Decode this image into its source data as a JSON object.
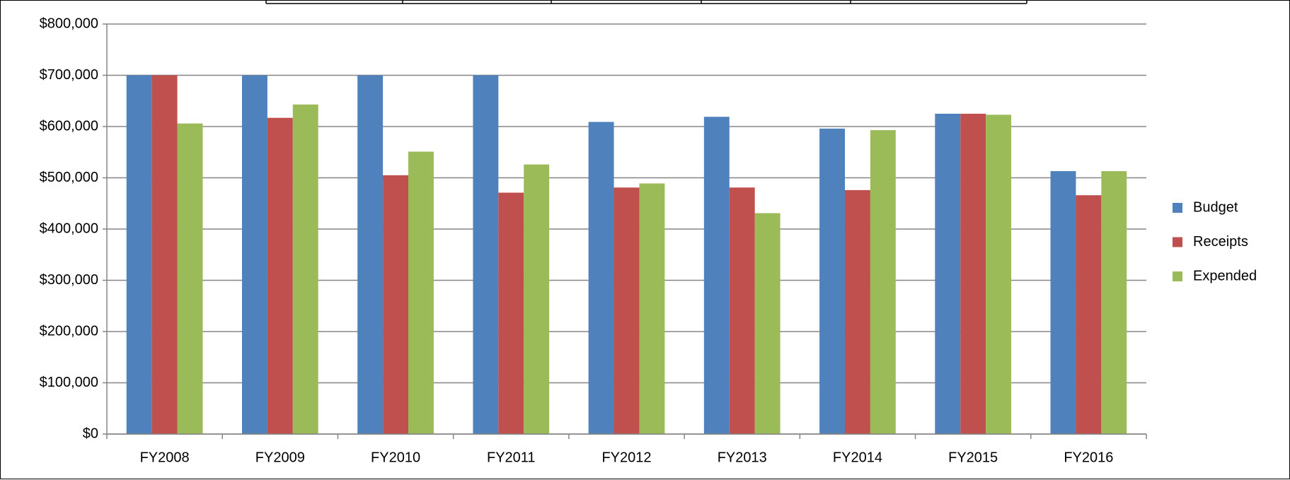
{
  "chart_data": {
    "type": "bar",
    "categories": [
      "FY2008",
      "FY2009",
      "FY2010",
      "FY2011",
      "FY2012",
      "FY2013",
      "FY2014",
      "FY2015",
      "FY2016"
    ],
    "series": [
      {
        "name": "Budget",
        "color": "#4f81bd",
        "values": [
          700000,
          700000,
          700000,
          700000,
          609000,
          619000,
          596000,
          625000,
          513000
        ]
      },
      {
        "name": "Receipts",
        "color": "#c0504d",
        "values": [
          700000,
          617000,
          505000,
          471000,
          481000,
          481000,
          476000,
          625000,
          466000
        ]
      },
      {
        "name": "Expended",
        "color": "#9bbb59",
        "values": [
          606000,
          643000,
          551000,
          526000,
          489000,
          431000,
          593000,
          623000,
          513000
        ]
      }
    ],
    "ylim": [
      0,
      800000
    ],
    "yticks": [
      {
        "value": 0,
        "label": "$0"
      },
      {
        "value": 100000,
        "label": "$100,000"
      },
      {
        "value": 200000,
        "label": "$200,000"
      },
      {
        "value": 300000,
        "label": "$300,000"
      },
      {
        "value": 400000,
        "label": "$400,000"
      },
      {
        "value": 500000,
        "label": "$500,000"
      },
      {
        "value": 600000,
        "label": "$600,000"
      },
      {
        "value": 700000,
        "label": "$700,000"
      },
      {
        "value": 800000,
        "label": "$800,000"
      }
    ],
    "grid": true,
    "legend": "right"
  }
}
